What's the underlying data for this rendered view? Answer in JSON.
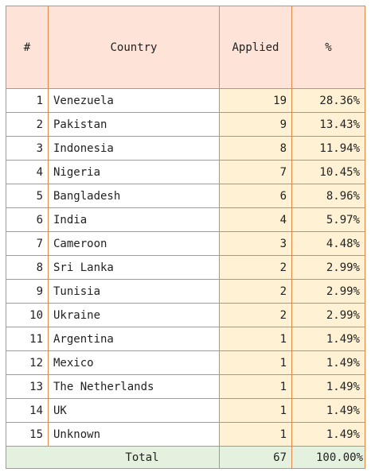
{
  "table": {
    "headers": {
      "rank": "#",
      "country": "Country",
      "applied": "Applied",
      "percent": "%"
    },
    "rows": [
      {
        "rank": "1",
        "country": "Venezuela",
        "applied": "19",
        "percent": "28.36%"
      },
      {
        "rank": "2",
        "country": "Pakistan",
        "applied": "9",
        "percent": "13.43%"
      },
      {
        "rank": "3",
        "country": "Indonesia",
        "applied": "8",
        "percent": "11.94%"
      },
      {
        "rank": "4",
        "country": "Nigeria",
        "applied": "7",
        "percent": "10.45%"
      },
      {
        "rank": "5",
        "country": "Bangladesh",
        "applied": "6",
        "percent": "8.96%"
      },
      {
        "rank": "6",
        "country": "India",
        "applied": "4",
        "percent": "5.97%"
      },
      {
        "rank": "7",
        "country": "Cameroon",
        "applied": "3",
        "percent": "4.48%"
      },
      {
        "rank": "8",
        "country": "Sri Lanka",
        "applied": "2",
        "percent": "2.99%"
      },
      {
        "rank": "9",
        "country": "Tunisia",
        "applied": "2",
        "percent": "2.99%"
      },
      {
        "rank": "10",
        "country": "Ukraine",
        "applied": "2",
        "percent": "2.99%"
      },
      {
        "rank": "11",
        "country": "Argentina",
        "applied": "1",
        "percent": "1.49%"
      },
      {
        "rank": "12",
        "country": "Mexico",
        "applied": "1",
        "percent": "1.49%"
      },
      {
        "rank": "13",
        "country": "The Netherlands",
        "applied": "1",
        "percent": "1.49%"
      },
      {
        "rank": "14",
        "country": "UK",
        "applied": "1",
        "percent": "1.49%"
      },
      {
        "rank": "15",
        "country": "Unknown",
        "applied": "1",
        "percent": "1.49%"
      }
    ],
    "total": {
      "label": "Total",
      "applied": "67",
      "percent": "100.00%"
    }
  },
  "colors": {
    "border": "#e08a4a",
    "header_bg": "#fde3d8",
    "value_bg": "#fff2d4",
    "total_bg": "#e5f1df"
  }
}
